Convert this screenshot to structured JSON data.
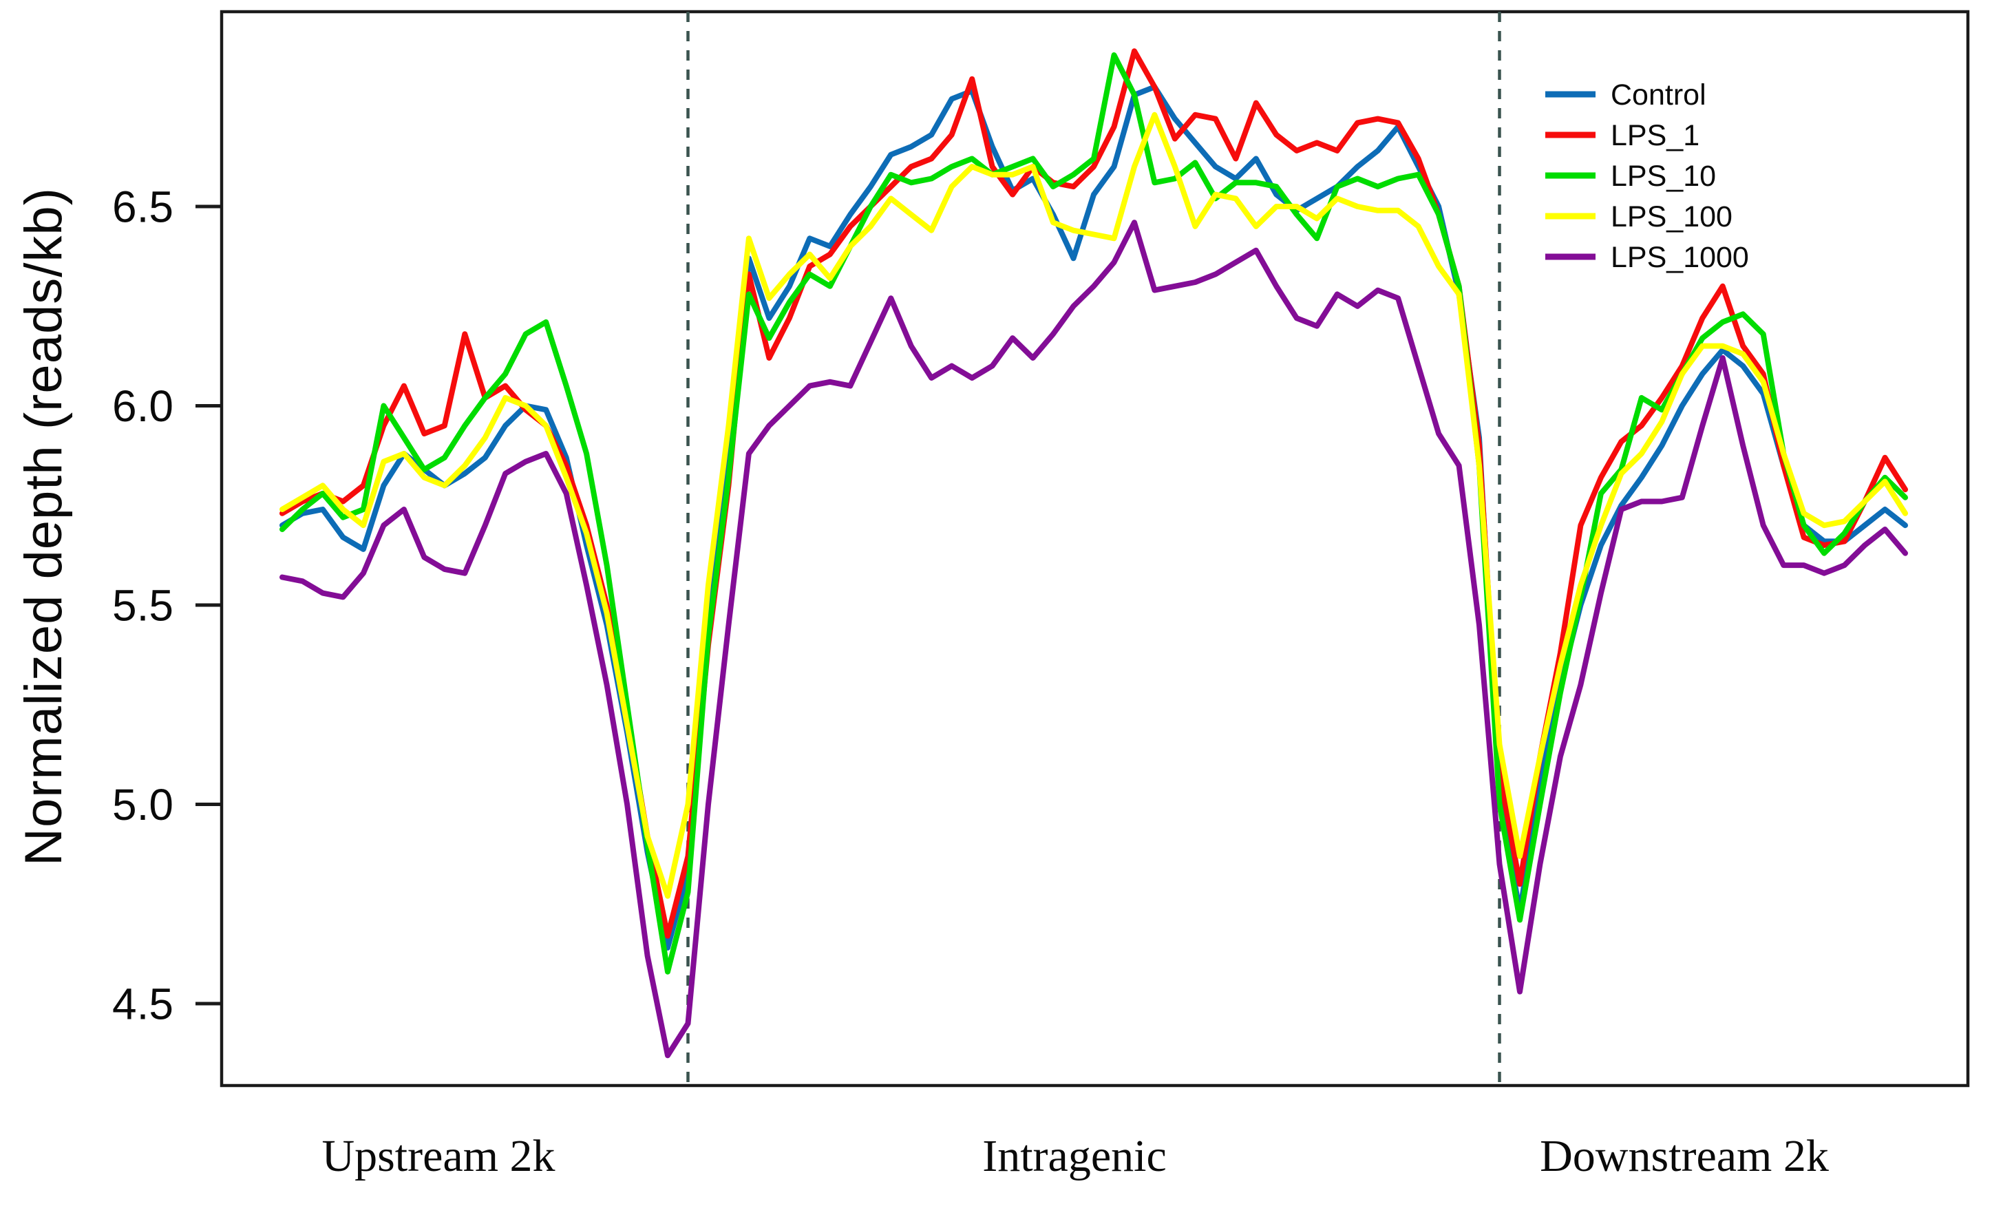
{
  "chart_data": {
    "type": "line",
    "title": "",
    "ylabel": "Normalized depth (reads/kb)",
    "xlabel": "",
    "x_section_labels": [
      "Upstream 2k",
      "Intragenic",
      "Downstream 2k"
    ],
    "y_ticks": [
      "6.5",
      "6.0",
      "5.5",
      "5.0",
      "4.5"
    ],
    "y_tick_values": [
      6.5,
      6.0,
      5.5,
      5.0,
      4.5
    ],
    "ylim": [
      4.29,
      6.99
    ],
    "grid": "off",
    "legend_position": "top-right",
    "x_points": 81,
    "section_boundary_indices": [
      20,
      60
    ],
    "separator_style": "dashed",
    "colors": {
      "axis": "#1a1a1a",
      "separator": "#3a534f",
      "text": "#0a0a0a"
    },
    "series": [
      {
        "name": "Control",
        "color": "#0d6cb6",
        "values": [
          5.7,
          5.73,
          5.74,
          5.67,
          5.64,
          5.8,
          5.88,
          5.84,
          5.8,
          5.83,
          5.87,
          5.95,
          6.0,
          5.99,
          5.87,
          5.65,
          5.45,
          5.18,
          4.88,
          4.64,
          4.83,
          5.48,
          5.88,
          6.37,
          6.22,
          6.3,
          6.42,
          6.4,
          6.48,
          6.55,
          6.63,
          6.65,
          6.68,
          6.77,
          6.79,
          6.65,
          6.54,
          6.57,
          6.48,
          6.37,
          6.53,
          6.6,
          6.78,
          6.8,
          6.72,
          6.66,
          6.6,
          6.57,
          6.62,
          6.53,
          6.49,
          6.52,
          6.55,
          6.6,
          6.64,
          6.7,
          6.6,
          6.5,
          6.28,
          5.92,
          5.02,
          4.73,
          5.05,
          5.3,
          5.5,
          5.65,
          5.75,
          5.82,
          5.9,
          6.0,
          6.08,
          6.14,
          6.1,
          6.03,
          5.85,
          5.7,
          5.66,
          5.66,
          5.7,
          5.74,
          5.7
        ]
      },
      {
        "name": "LPS_1",
        "color": "#f60c0c",
        "values": [
          5.73,
          5.76,
          5.78,
          5.76,
          5.8,
          5.95,
          6.05,
          5.93,
          5.95,
          6.18,
          6.02,
          6.05,
          5.99,
          5.95,
          5.85,
          5.7,
          5.5,
          5.22,
          4.92,
          4.67,
          4.87,
          5.4,
          5.8,
          6.33,
          6.12,
          6.22,
          6.35,
          6.38,
          6.45,
          6.5,
          6.55,
          6.6,
          6.62,
          6.68,
          6.82,
          6.6,
          6.53,
          6.6,
          6.56,
          6.55,
          6.6,
          6.7,
          6.89,
          6.8,
          6.67,
          6.73,
          6.72,
          6.62,
          6.76,
          6.68,
          6.64,
          6.66,
          6.64,
          6.71,
          6.72,
          6.71,
          6.62,
          6.48,
          6.3,
          5.9,
          5.08,
          4.8,
          5.12,
          5.38,
          5.7,
          5.82,
          5.91,
          5.95,
          6.02,
          6.1,
          6.22,
          6.3,
          6.15,
          6.08,
          5.85,
          5.67,
          5.65,
          5.66,
          5.76,
          5.87,
          5.79
        ]
      },
      {
        "name": "LPS_10",
        "color": "#00dc00",
        "values": [
          5.69,
          5.74,
          5.78,
          5.72,
          5.74,
          6.0,
          5.92,
          5.84,
          5.87,
          5.95,
          6.02,
          6.08,
          6.18,
          6.21,
          6.05,
          5.88,
          5.6,
          5.25,
          4.9,
          4.58,
          4.78,
          5.42,
          5.82,
          6.28,
          6.17,
          6.26,
          6.33,
          6.3,
          6.4,
          6.5,
          6.58,
          6.56,
          6.57,
          6.6,
          6.62,
          6.58,
          6.6,
          6.62,
          6.55,
          6.58,
          6.62,
          6.88,
          6.78,
          6.56,
          6.57,
          6.61,
          6.52,
          6.56,
          6.56,
          6.55,
          6.48,
          6.42,
          6.55,
          6.57,
          6.55,
          6.57,
          6.58,
          6.48,
          6.3,
          5.85,
          5.0,
          4.71,
          5.0,
          5.28,
          5.52,
          5.78,
          5.84,
          6.02,
          5.99,
          6.08,
          6.17,
          6.21,
          6.23,
          6.18,
          5.88,
          5.7,
          5.63,
          5.68,
          5.76,
          5.82,
          5.77
        ]
      },
      {
        "name": "LPS_100",
        "color": "#ffff00",
        "values": [
          5.74,
          5.77,
          5.8,
          5.74,
          5.7,
          5.86,
          5.88,
          5.82,
          5.8,
          5.85,
          5.92,
          6.02,
          6.0,
          5.95,
          5.82,
          5.68,
          5.48,
          5.2,
          4.92,
          4.77,
          5.0,
          5.55,
          5.95,
          6.42,
          6.27,
          6.33,
          6.38,
          6.32,
          6.4,
          6.45,
          6.52,
          6.48,
          6.44,
          6.55,
          6.6,
          6.58,
          6.58,
          6.6,
          6.46,
          6.44,
          6.43,
          6.42,
          6.6,
          6.73,
          6.6,
          6.45,
          6.53,
          6.52,
          6.45,
          6.5,
          6.5,
          6.47,
          6.52,
          6.5,
          6.49,
          6.49,
          6.45,
          6.35,
          6.28,
          5.85,
          5.15,
          4.87,
          5.12,
          5.35,
          5.55,
          5.7,
          5.83,
          5.88,
          5.96,
          6.08,
          6.15,
          6.15,
          6.13,
          6.06,
          5.88,
          5.73,
          5.7,
          5.71,
          5.76,
          5.81,
          5.73
        ]
      },
      {
        "name": "LPS_1000",
        "color": "#830d96",
        "values": [
          5.57,
          5.56,
          5.53,
          5.52,
          5.58,
          5.7,
          5.74,
          5.62,
          5.59,
          5.58,
          5.7,
          5.83,
          5.86,
          5.88,
          5.78,
          5.55,
          5.3,
          5.0,
          4.62,
          4.37,
          4.45,
          5.0,
          5.45,
          5.88,
          5.95,
          6.0,
          6.05,
          6.06,
          6.05,
          6.16,
          6.27,
          6.15,
          6.07,
          6.1,
          6.07,
          6.1,
          6.17,
          6.12,
          6.18,
          6.25,
          6.3,
          6.36,
          6.46,
          6.29,
          6.3,
          6.31,
          6.33,
          6.36,
          6.39,
          6.3,
          6.22,
          6.2,
          6.28,
          6.25,
          6.29,
          6.27,
          6.1,
          5.93,
          5.85,
          5.45,
          4.85,
          4.53,
          4.85,
          5.12,
          5.3,
          5.53,
          5.74,
          5.76,
          5.76,
          5.77,
          5.95,
          6.12,
          5.9,
          5.7,
          5.6,
          5.6,
          5.58,
          5.6,
          5.65,
          5.69,
          5.63
        ]
      }
    ]
  }
}
